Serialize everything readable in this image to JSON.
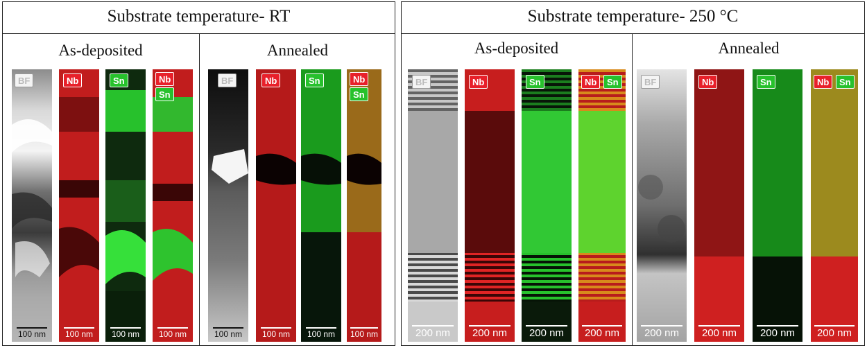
{
  "panels": {
    "left": {
      "title": "Substrate temperature- RT",
      "as_deposited": "As-deposited",
      "annealed": "Annealed"
    },
    "right": {
      "title": "Substrate temperature- 250 °C",
      "as_deposited": "As-deposited",
      "annealed": "Annealed"
    }
  },
  "labels": {
    "bf": "BF",
    "nb": "Nb",
    "sn": "Sn"
  },
  "scales": {
    "rt": "100 nm",
    "t250": "200 nm"
  },
  "colors": {
    "nb": "#e8202a",
    "sn": "#27c12c"
  }
}
